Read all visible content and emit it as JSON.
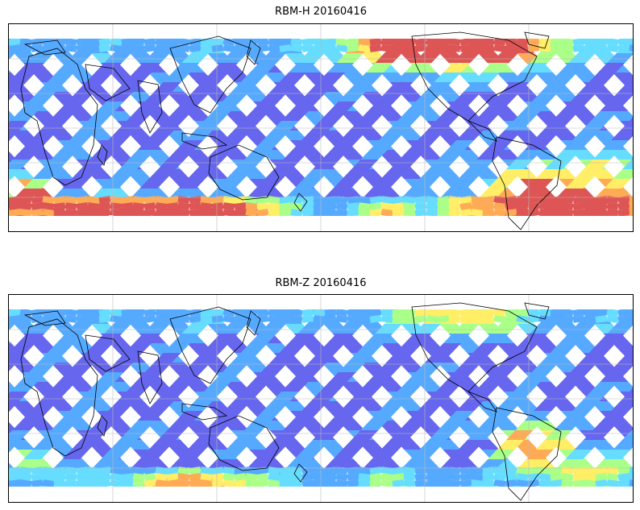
{
  "panels": [
    {
      "title": "RBM-H 20160416",
      "colormap": [
        "#6666ee",
        "#55aaff",
        "#66ddff",
        "#aaff88",
        "#ffee66",
        "#ffaa55",
        "#dd5555"
      ],
      "background_color": "#ffffff",
      "coastline_color": "#000000",
      "gridline_color": "#bbbbbb"
    },
    {
      "title": "RBM-Z 20160416",
      "colormap": [
        "#6666ee",
        "#55aaff",
        "#66ddff",
        "#aaff88",
        "#ffee66",
        "#ffaa55",
        "#dd5555"
      ],
      "background_color": "#ffffff",
      "coastline_color": "#000000",
      "gridline_color": "#bbbbbb"
    }
  ]
}
